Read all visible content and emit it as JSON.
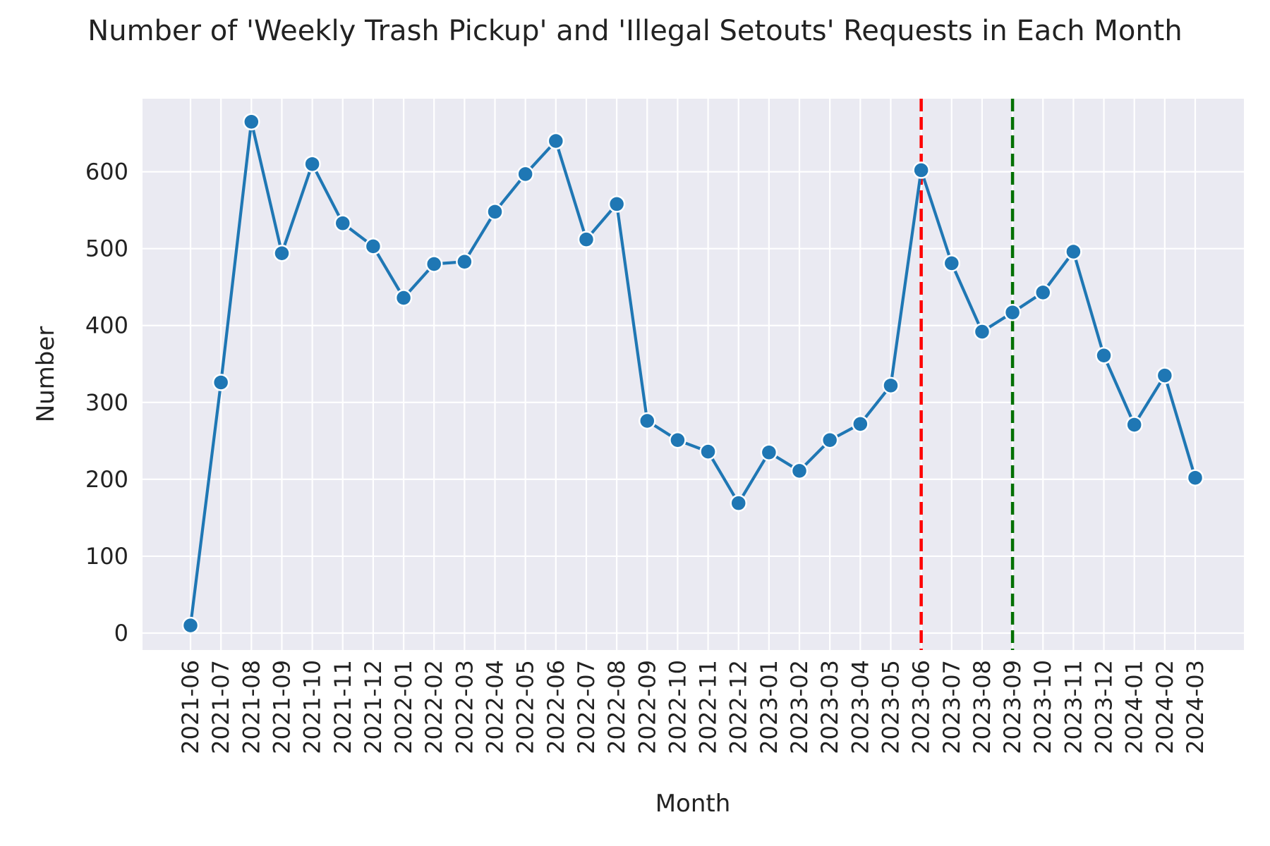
{
  "chart_data": {
    "type": "line",
    "title": "Number of 'Weekly Trash Pickup' and 'Illegal Setouts' Requests in Each Month",
    "xlabel": "Month",
    "ylabel": "Number",
    "ylim": [
      -22,
      695
    ],
    "yticks": [
      0,
      100,
      200,
      300,
      400,
      500,
      600
    ],
    "grid": true,
    "categories": [
      "2021-06",
      "2021-07",
      "2021-08",
      "2021-09",
      "2021-10",
      "2021-11",
      "2021-12",
      "2022-01",
      "2022-02",
      "2022-03",
      "2022-04",
      "2022-05",
      "2022-06",
      "2022-07",
      "2022-08",
      "2022-09",
      "2022-10",
      "2022-11",
      "2022-12",
      "2023-01",
      "2023-02",
      "2023-03",
      "2023-04",
      "2023-05",
      "2023-06",
      "2023-07",
      "2023-08",
      "2023-09",
      "2023-10",
      "2023-11",
      "2023-12",
      "2024-01",
      "2024-02",
      "2024-03"
    ],
    "series": [
      {
        "color": "#1f77b4",
        "values": [
          10,
          326,
          665,
          494,
          610,
          533,
          503,
          436,
          480,
          483,
          548,
          597,
          640,
          512,
          558,
          276,
          251,
          236,
          169,
          235,
          211,
          251,
          272,
          322,
          602,
          481,
          392,
          417,
          443,
          496,
          361,
          271,
          335,
          202
        ]
      }
    ],
    "reference_lines": [
      {
        "x": "2023-06",
        "color": "#ff0000",
        "style": "dashed"
      },
      {
        "x": "2023-09",
        "color": "#007000",
        "style": "dashed"
      }
    ],
    "background_color": "#eaeaf2",
    "grid_color": "#ffffff"
  }
}
